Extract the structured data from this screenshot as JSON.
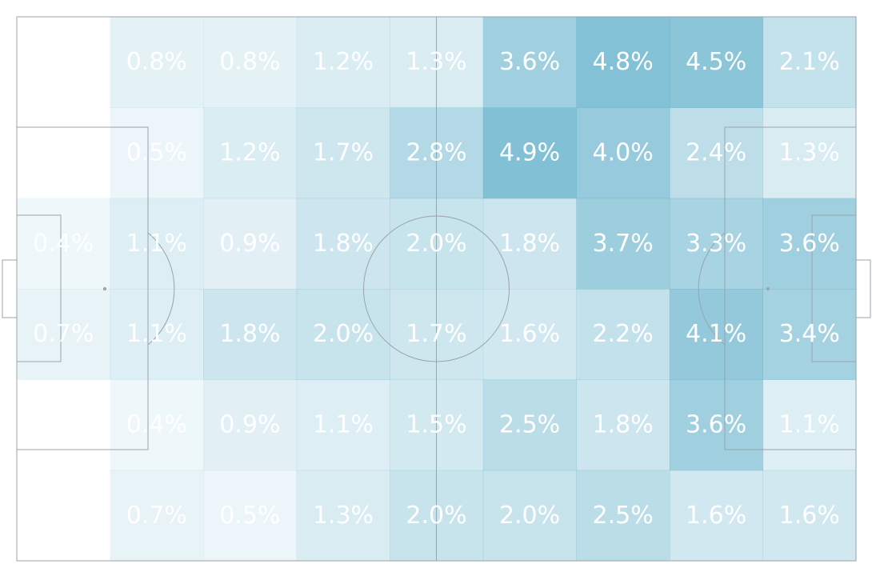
{
  "chart_data": {
    "type": "heatmap",
    "title": "",
    "subtitle": "",
    "xlabel": "",
    "ylabel": "",
    "grid": false,
    "legend": "none",
    "cell_label_format": "{v}%",
    "rows": 6,
    "cols": 9,
    "values": [
      [
        null,
        0.8,
        0.8,
        1.2,
        1.3,
        3.6,
        4.8,
        4.5,
        2.1
      ],
      [
        null,
        0.5,
        1.2,
        1.7,
        2.8,
        4.9,
        4.0,
        2.4,
        1.3
      ],
      [
        0.4,
        1.1,
        0.9,
        1.8,
        2.0,
        1.8,
        3.7,
        3.3,
        3.6
      ],
      [
        0.7,
        1.1,
        1.8,
        2.0,
        1.7,
        1.6,
        2.2,
        4.1,
        3.4
      ],
      [
        null,
        0.4,
        0.9,
        1.1,
        1.5,
        2.5,
        1.8,
        3.6,
        1.1
      ],
      [
        null,
        0.7,
        0.5,
        1.3,
        2.0,
        2.0,
        2.5,
        1.6,
        1.6
      ]
    ],
    "colors": {
      "heat": "#6fb7cf",
      "label": "#ffffff",
      "pitch_line": "#9aa4aa",
      "background": "#ffffff"
    }
  }
}
